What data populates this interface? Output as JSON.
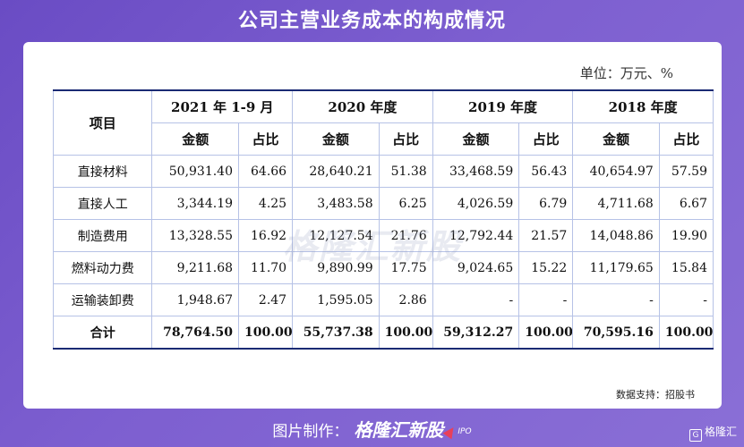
{
  "title": "公司主营业务成本的构成情况",
  "unit": "单位：万元、%",
  "table": {
    "item_header": "项目",
    "periods": [
      "2021 年 1-9 月",
      "2020 年度",
      "2019 年度",
      "2018 年度"
    ],
    "amount_label": "金额",
    "ratio_label": "占比",
    "rows": [
      {
        "label": "直接材料",
        "cells": [
          "50,931.40",
          "64.66",
          "28,640.21",
          "51.38",
          "33,468.59",
          "56.43",
          "40,654.97",
          "57.59"
        ]
      },
      {
        "label": "直接人工",
        "cells": [
          "3,344.19",
          "4.25",
          "3,483.58",
          "6.25",
          "4,026.59",
          "6.79",
          "4,711.68",
          "6.67"
        ]
      },
      {
        "label": "制造费用",
        "cells": [
          "13,328.55",
          "16.92",
          "12,127.54",
          "21.76",
          "12,792.44",
          "21.57",
          "14,048.86",
          "19.90"
        ]
      },
      {
        "label": "燃料动力费",
        "cells": [
          "9,211.68",
          "11.70",
          "9,890.99",
          "17.75",
          "9,024.65",
          "15.22",
          "11,179.65",
          "15.84"
        ]
      },
      {
        "label": "运输装卸费",
        "cells": [
          "1,948.67",
          "2.47",
          "1,595.05",
          "2.86",
          "-",
          "-",
          "-",
          "-"
        ]
      },
      {
        "label": "合计",
        "cells": [
          "78,764.50",
          "100.00",
          "55,737.38",
          "100.00",
          "59,312.27",
          "100.00",
          "70,595.16",
          "100.00"
        ]
      }
    ]
  },
  "source": "数据支持：招股书",
  "watermark": "格隆汇新股",
  "footer": {
    "prefix": "图片制作：",
    "brand": "格隆汇新股",
    "suffix": "IPO"
  },
  "corner_logo": "格隆汇"
}
